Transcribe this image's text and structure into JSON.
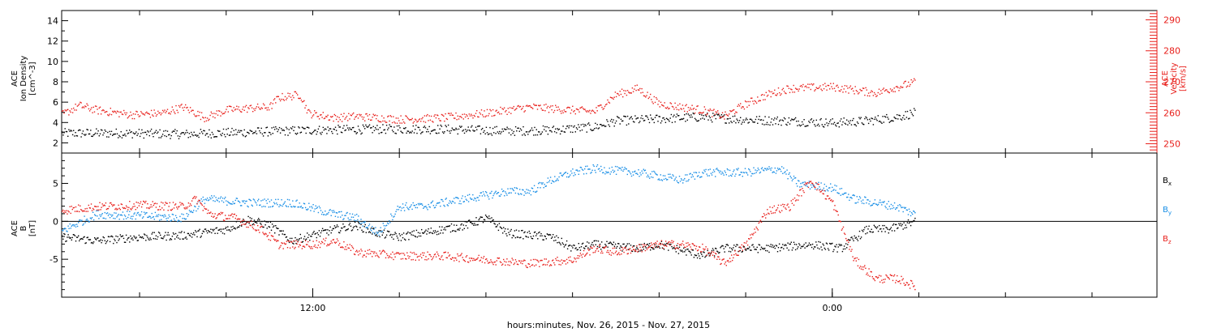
{
  "colors": {
    "black": "#000000",
    "red": "#e8201c",
    "blue": "#1a8fe6"
  },
  "x_axis": {
    "title": "hours:minutes, Nov. 26, 2015 - Nov. 27, 2015",
    "tick_labels": [
      {
        "label": "12:00",
        "hour": 12
      },
      {
        "label": "0:00",
        "hour": 24
      }
    ],
    "range_hours": [
      6.2,
      31.5
    ],
    "data_end_hour": 25.9
  },
  "chart_data": [
    {
      "type": "scatter",
      "panel": "plasma",
      "left_axis": {
        "label_lines": [
          "ACE",
          "Ion Density",
          "[cm^-3]"
        ],
        "ticks": [
          "2",
          "4",
          "6",
          "8",
          "10",
          "12",
          "14"
        ],
        "ylim": [
          1,
          15
        ]
      },
      "right_axis": {
        "label_lines": [
          "ACE",
          "Velocity",
          "[km/s]"
        ],
        "ticks": [
          "250",
          "260",
          "270",
          "280",
          "290"
        ],
        "ylim": [
          247,
          293
        ],
        "color": "#e8201c"
      },
      "series": [
        {
          "color": "#000000",
          "axis": "left",
          "anchors": [
            [
              6.2,
              3.0
            ],
            [
              7.5,
              3.0
            ],
            [
              9.0,
              2.9
            ],
            [
              10.5,
              3.1
            ],
            [
              12.0,
              3.3
            ],
            [
              13.5,
              3.4
            ],
            [
              15.0,
              3.4
            ],
            [
              16.5,
              3.2
            ],
            [
              17.5,
              3.3
            ],
            [
              18.5,
              3.6
            ],
            [
              19.0,
              4.2
            ],
            [
              20.0,
              4.4
            ],
            [
              21.0,
              4.6
            ],
            [
              22.0,
              4.3
            ],
            [
              23.0,
              4.2
            ],
            [
              24.0,
              4.0
            ],
            [
              24.8,
              4.2
            ],
            [
              25.5,
              4.6
            ],
            [
              25.9,
              5.0
            ]
          ]
        },
        {
          "color": "#e8201c",
          "axis": "right",
          "anchors": [
            [
              6.2,
              259.5
            ],
            [
              6.6,
              262.5
            ],
            [
              7.0,
              261.0
            ],
            [
              7.8,
              259.5
            ],
            [
              8.5,
              260.0
            ],
            [
              9.0,
              262.0
            ],
            [
              9.3,
              260.0
            ],
            [
              9.5,
              258.5
            ],
            [
              10.0,
              261.0
            ],
            [
              10.4,
              261.5
            ],
            [
              11.0,
              262.0
            ],
            [
              11.2,
              265.0
            ],
            [
              11.7,
              266.0
            ],
            [
              11.9,
              260.0
            ],
            [
              12.5,
              258.5
            ],
            [
              13.0,
              259.0
            ],
            [
              14.0,
              258.0
            ],
            [
              15.0,
              258.5
            ],
            [
              16.0,
              260.0
            ],
            [
              17.0,
              262.0
            ],
            [
              18.0,
              261.0
            ],
            [
              18.5,
              260.5
            ],
            [
              19.0,
              266.0
            ],
            [
              19.5,
              268.0
            ],
            [
              20.0,
              263.0
            ],
            [
              21.0,
              261.0
            ],
            [
              21.5,
              259.0
            ],
            [
              22.0,
              263.0
            ],
            [
              22.5,
              266.0
            ],
            [
              23.0,
              268.0
            ],
            [
              24.0,
              268.5
            ],
            [
              25.0,
              266.5
            ],
            [
              25.5,
              268.5
            ],
            [
              25.9,
              270.0
            ]
          ]
        }
      ]
    },
    {
      "type": "scatter",
      "panel": "magnetic-field",
      "left_axis": {
        "label_lines": [
          "ACE",
          "B",
          "[nT]"
        ],
        "ticks": [
          "-5",
          "0",
          "5"
        ],
        "ylim": [
          -10,
          9
        ]
      },
      "legend": [
        {
          "label": "B",
          "subscript": "x",
          "color": "#000000"
        },
        {
          "label": "B",
          "subscript": "y",
          "color": "#1a8fe6"
        },
        {
          "label": "B",
          "subscript": "z",
          "color": "#e8201c"
        }
      ],
      "legend_position": "right",
      "zero_line": 0,
      "series": [
        {
          "color": "#000000",
          "anchors": [
            [
              6.2,
              -2.0
            ],
            [
              7.0,
              -2.5
            ],
            [
              8.0,
              -2.0
            ],
            [
              9.0,
              -1.8
            ],
            [
              10.0,
              -1.0
            ],
            [
              10.5,
              0.3
            ],
            [
              11.0,
              -0.5
            ],
            [
              11.5,
              -2.5
            ],
            [
              12.5,
              -1.0
            ],
            [
              13.0,
              -0.5
            ],
            [
              13.5,
              -1.5
            ],
            [
              14.0,
              -2.0
            ],
            [
              14.5,
              -1.5
            ],
            [
              15.0,
              -1.0
            ],
            [
              15.5,
              -0.5
            ],
            [
              16.0,
              0.5
            ],
            [
              16.5,
              -1.5
            ],
            [
              17.5,
              -2.0
            ],
            [
              18.0,
              -3.5
            ],
            [
              18.5,
              -3.0
            ],
            [
              19.5,
              -3.5
            ],
            [
              20.0,
              -3.0
            ],
            [
              21.0,
              -4.5
            ],
            [
              21.5,
              -3.5
            ],
            [
              22.5,
              -3.5
            ],
            [
              23.5,
              -3.0
            ],
            [
              24.2,
              -3.5
            ],
            [
              24.8,
              -1.0
            ],
            [
              25.3,
              -1.0
            ],
            [
              25.9,
              0.0
            ]
          ]
        },
        {
          "color": "#1a8fe6",
          "anchors": [
            [
              6.2,
              -1.2
            ],
            [
              7.0,
              1.0
            ],
            [
              8.0,
              0.8
            ],
            [
              9.0,
              0.5
            ],
            [
              9.5,
              3.0
            ],
            [
              10.5,
              2.5
            ],
            [
              11.5,
              2.5
            ],
            [
              12.5,
              1.0
            ],
            [
              13.0,
              0.5
            ],
            [
              13.5,
              -1.5
            ],
            [
              14.0,
              2.0
            ],
            [
              14.5,
              2.0
            ],
            [
              15.0,
              2.5
            ],
            [
              15.5,
              3.0
            ],
            [
              16.0,
              3.5
            ],
            [
              16.5,
              4.0
            ],
            [
              17.0,
              4.0
            ],
            [
              17.5,
              5.5
            ],
            [
              18.0,
              6.5
            ],
            [
              18.5,
              7.0
            ],
            [
              19.5,
              6.5
            ],
            [
              20.0,
              6.0
            ],
            [
              20.5,
              5.5
            ],
            [
              21.0,
              6.5
            ],
            [
              22.0,
              6.5
            ],
            [
              22.8,
              7.0
            ],
            [
              23.2,
              5.0
            ],
            [
              24.0,
              4.5
            ],
            [
              24.5,
              3.0
            ],
            [
              25.0,
              2.5
            ],
            [
              25.5,
              2.0
            ],
            [
              25.9,
              1.0
            ]
          ]
        },
        {
          "color": "#e8201c",
          "anchors": [
            [
              6.2,
              1.5
            ],
            [
              7.0,
              2.0
            ],
            [
              8.0,
              2.2
            ],
            [
              9.0,
              2.0
            ],
            [
              9.3,
              3.0
            ],
            [
              9.6,
              1.0
            ],
            [
              10.2,
              0.5
            ],
            [
              10.8,
              -1.0
            ],
            [
              11.2,
              -3.0
            ],
            [
              12.0,
              -3.0
            ],
            [
              12.5,
              -2.5
            ],
            [
              13.0,
              -4.0
            ],
            [
              14.0,
              -4.5
            ],
            [
              15.0,
              -4.5
            ],
            [
              16.0,
              -5.0
            ],
            [
              17.0,
              -5.5
            ],
            [
              18.0,
              -5.0
            ],
            [
              18.5,
              -3.5
            ],
            [
              19.0,
              -4.0
            ],
            [
              19.5,
              -3.5
            ],
            [
              20.0,
              -3.0
            ],
            [
              20.5,
              -3.0
            ],
            [
              21.0,
              -3.5
            ],
            [
              21.5,
              -5.5
            ],
            [
              22.0,
              -3.0
            ],
            [
              22.5,
              1.5
            ],
            [
              23.0,
              2.0
            ],
            [
              23.5,
              5.5
            ],
            [
              24.0,
              2.5
            ],
            [
              24.5,
              -5.0
            ],
            [
              25.0,
              -7.5
            ],
            [
              25.5,
              -7.5
            ],
            [
              25.9,
              -8.5
            ]
          ]
        }
      ]
    }
  ]
}
